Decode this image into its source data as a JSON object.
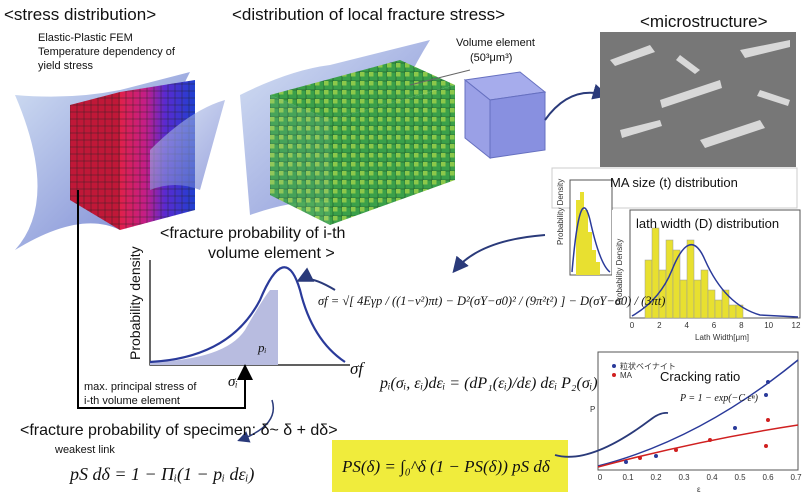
{
  "sections": {
    "stress": {
      "title": "<stress distribution>",
      "notes": [
        "Elastic-Plastic FEM",
        "Temperature dependency of",
        "yield stress"
      ]
    },
    "local": {
      "title": "<distribution of local fracture stress>",
      "volume_label": "Volume element",
      "volume_size": "(50³μm³)"
    },
    "micro": {
      "title": "<microstructure>"
    },
    "ma_plot": {
      "title": "MA size (t) distribution",
      "ylabel": "Probability Density"
    },
    "lath_plot": {
      "title": "lath width (D) distribution",
      "ylabel": "Probability Density",
      "xlabel": "Lath Width[μm]",
      "xticks": [
        0,
        2,
        4,
        6,
        8,
        10,
        12
      ]
    },
    "element": {
      "title_1": "<fracture probability of i-th",
      "title_2": "volume element >",
      "ylabel": "Probability density",
      "pi": "pᵢ",
      "sigma_f": "σf",
      "sigma_i": "σᵢ",
      "note_1": "max. principal stress of",
      "note_2": "i-th volume element"
    },
    "formulas": {
      "sigma_f": "σf = √[ 4Eγp / ((1−ν²)πt) − D²(σY−σ0)² / (9π²t²) ] − D(σY−σ0) / (3πt)",
      "p_i": "pᵢ(σᵢ, εᵢ)dεᵢ = (dP₁(εᵢ)/dε) dεᵢ P₂(σᵢ)",
      "p_s": "pS dδ = 1 − Πᵢ(1 − pᵢ dεᵢ)",
      "P_s": "PS(δ) = ∫₀^δ (1 − PS(δ)) pS dδ"
    },
    "specimen": {
      "title": "<fracture probability of specimen: δ~ δ + dδ>",
      "note": "weakest link"
    },
    "cracking": {
      "title": "Cracking ratio",
      "formula": "P = 1 − exp(−C εⁿ)",
      "legend": [
        "粒状ベイナイト",
        "MA"
      ],
      "xlabel": "ε",
      "ylabel": "P",
      "xticks": [
        0,
        0.1,
        0.2,
        0.3,
        0.4,
        0.5,
        0.6,
        0.7
      ]
    }
  }
}
